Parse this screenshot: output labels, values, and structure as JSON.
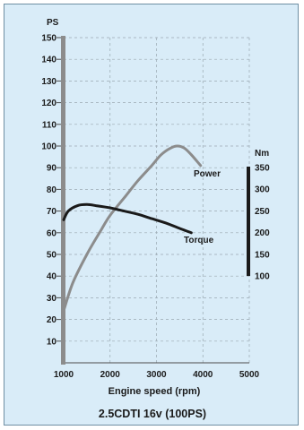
{
  "chart_data": {
    "type": "line",
    "title": "2.5CDTI 16v (100PS)",
    "xlabel": "Engine speed (rpm)",
    "xlim": [
      1000,
      5000
    ],
    "x_ticks": [
      "1000",
      "2000",
      "3000",
      "4000",
      "5000"
    ],
    "left_axis": {
      "unit": "PS",
      "ylim": [
        0,
        150
      ],
      "ticks": [
        "10",
        "20",
        "30",
        "40",
        "50",
        "60",
        "70",
        "80",
        "90",
        "100",
        "110",
        "120",
        "130",
        "140",
        "150"
      ],
      "bar_color": "#8c8c8c"
    },
    "right_axis": {
      "unit": "Nm",
      "ylim": [
        100,
        350
      ],
      "ticks": [
        "100",
        "150",
        "200",
        "250",
        "300",
        "350"
      ],
      "bar_color": "#1a1a1a"
    },
    "grid": true,
    "series": [
      {
        "name": "Power",
        "axis": "left",
        "color": "#8c8c8c",
        "x": [
          1000,
          1200,
          1500,
          1800,
          2000,
          2300,
          2600,
          2900,
          3100,
          3300,
          3450,
          3600,
          3750,
          3950
        ],
        "y": [
          24,
          37,
          50,
          61,
          68,
          76,
          84,
          91,
          96,
          99,
          100,
          99,
          96,
          91
        ]
      },
      {
        "name": "Torque",
        "axis": "left",
        "color": "#1a1a1a",
        "x": [
          1000,
          1100,
          1300,
          1500,
          1700,
          2000,
          2300,
          2600,
          2900,
          3200,
          3500,
          3750
        ],
        "y": [
          66,
          70,
          72.5,
          73,
          72.5,
          71.5,
          70,
          68.5,
          66.5,
          64.5,
          62,
          60
        ]
      }
    ],
    "annotations": [
      "Power",
      "Torque"
    ]
  }
}
